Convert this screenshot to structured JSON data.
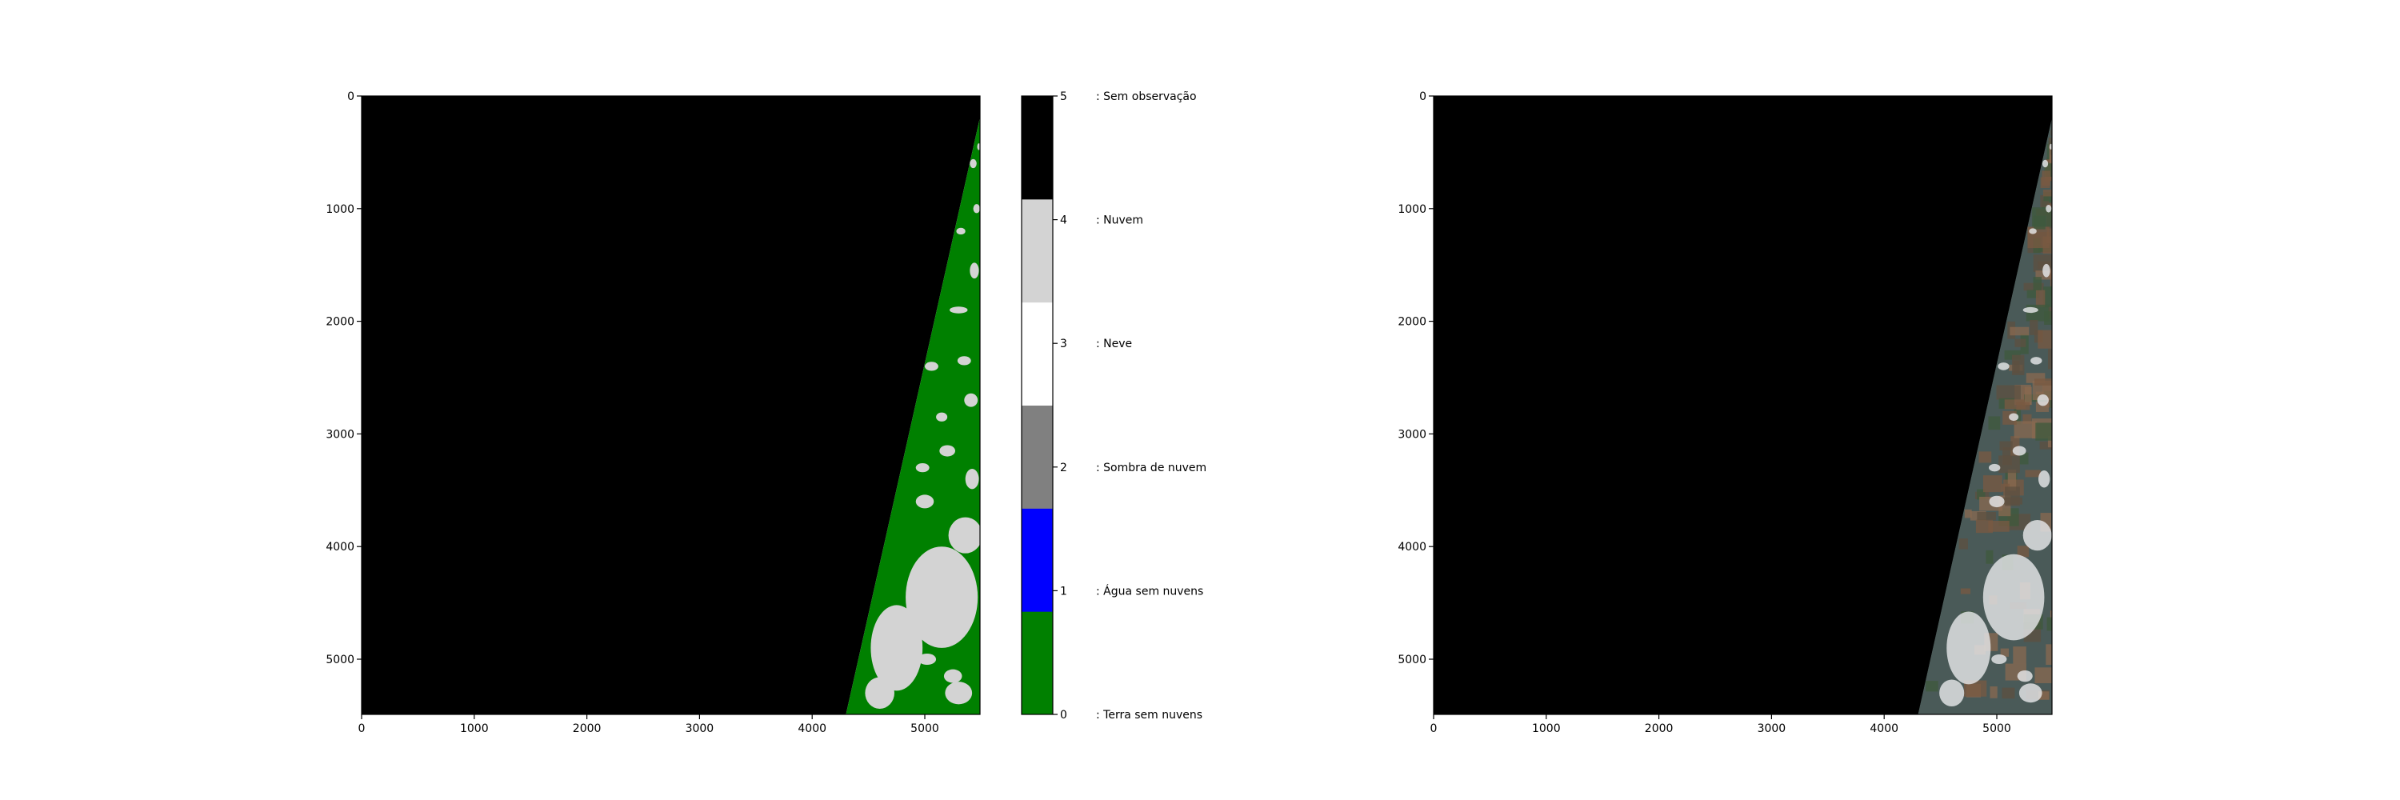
{
  "chart_data": [
    {
      "type": "heatmap",
      "title": "",
      "xlabel": "",
      "ylabel": "",
      "xlim": [
        0,
        5490
      ],
      "ylim": [
        5490,
        0
      ],
      "xticks": [
        0,
        1000,
        2000,
        3000,
        4000,
        5000
      ],
      "yticks": [
        0,
        1000,
        2000,
        3000,
        4000,
        5000
      ],
      "regions": [
        {
          "class": 5,
          "description": "no observation",
          "polygon": [
            [
              0,
              0
            ],
            [
              5490,
              0
            ],
            [
              5490,
              190
            ],
            [
              4300,
              5490
            ],
            [
              0,
              5490
            ]
          ]
        },
        {
          "class": 0,
          "description": "valid land swath",
          "polygon": [
            [
              5490,
              190
            ],
            [
              5490,
              5490
            ],
            [
              4300,
              5490
            ]
          ]
        }
      ],
      "cloud_clusters": [
        {
          "x": 5150,
          "y": 4450,
          "rx": 320,
          "ry": 450
        },
        {
          "x": 4750,
          "y": 4900,
          "rx": 230,
          "ry": 380
        },
        {
          "x": 5360,
          "y": 3900,
          "rx": 150,
          "ry": 160
        },
        {
          "x": 4600,
          "y": 5300,
          "rx": 130,
          "ry": 140
        },
        {
          "x": 5300,
          "y": 5300,
          "rx": 120,
          "ry": 100
        },
        {
          "x": 5000,
          "y": 3600,
          "rx": 80,
          "ry": 60
        },
        {
          "x": 5420,
          "y": 3400,
          "rx": 60,
          "ry": 90
        },
        {
          "x": 5200,
          "y": 3150,
          "rx": 70,
          "ry": 50
        },
        {
          "x": 5410,
          "y": 2700,
          "rx": 60,
          "ry": 60
        },
        {
          "x": 5350,
          "y": 2350,
          "rx": 60,
          "ry": 40
        },
        {
          "x": 5300,
          "y": 1900,
          "rx": 80,
          "ry": 30
        },
        {
          "x": 5440,
          "y": 1550,
          "rx": 40,
          "ry": 70
        },
        {
          "x": 5320,
          "y": 1200,
          "rx": 40,
          "ry": 30
        },
        {
          "x": 5460,
          "y": 1000,
          "rx": 30,
          "ry": 40
        },
        {
          "x": 5430,
          "y": 600,
          "rx": 30,
          "ry": 40
        },
        {
          "x": 5480,
          "y": 450,
          "rx": 15,
          "ry": 30
        },
        {
          "x": 5060,
          "y": 2400,
          "rx": 60,
          "ry": 40
        },
        {
          "x": 5150,
          "y": 2850,
          "rx": 50,
          "ry": 40
        },
        {
          "x": 4980,
          "y": 3300,
          "rx": 60,
          "ry": 40
        },
        {
          "x": 5250,
          "y": 5150,
          "rx": 80,
          "ry": 60
        },
        {
          "x": 5020,
          "y": 5000,
          "rx": 80,
          "ry": 50
        }
      ]
    },
    {
      "type": "heatmap",
      "colorbar": true,
      "ticks": [
        0,
        1,
        2,
        3,
        4,
        5
      ],
      "classes": [
        {
          "value": 0,
          "color": "#008000",
          "label": ": Terra sem nuvens"
        },
        {
          "value": 1,
          "color": "#0000ff",
          "label": ": Água sem nuvens"
        },
        {
          "value": 2,
          "color": "#808080",
          "label": ": Sombra de nuvem"
        },
        {
          "value": 3,
          "color": "#ffffff",
          "label": ": Neve"
        },
        {
          "value": 4,
          "color": "#d3d3d3",
          "label": ": Nuvem"
        },
        {
          "value": 5,
          "color": "#000000",
          "label": ": Sem observação"
        }
      ]
    },
    {
      "type": "heatmap",
      "image": "true-color",
      "title": "",
      "xlabel": "",
      "ylabel": "",
      "xlim": [
        0,
        5490
      ],
      "ylim": [
        5490,
        0
      ],
      "xticks": [
        0,
        1000,
        2000,
        3000,
        4000,
        5000
      ],
      "yticks": [
        0,
        1000,
        2000,
        3000,
        4000,
        5000
      ],
      "background_color": "#000000",
      "swath_color": "#4a5a58",
      "field_colors": [
        "#7a5a42",
        "#5e5040",
        "#3f5a3c",
        "#8a6a50"
      ],
      "cloud_color": "#e8eaec"
    }
  ]
}
